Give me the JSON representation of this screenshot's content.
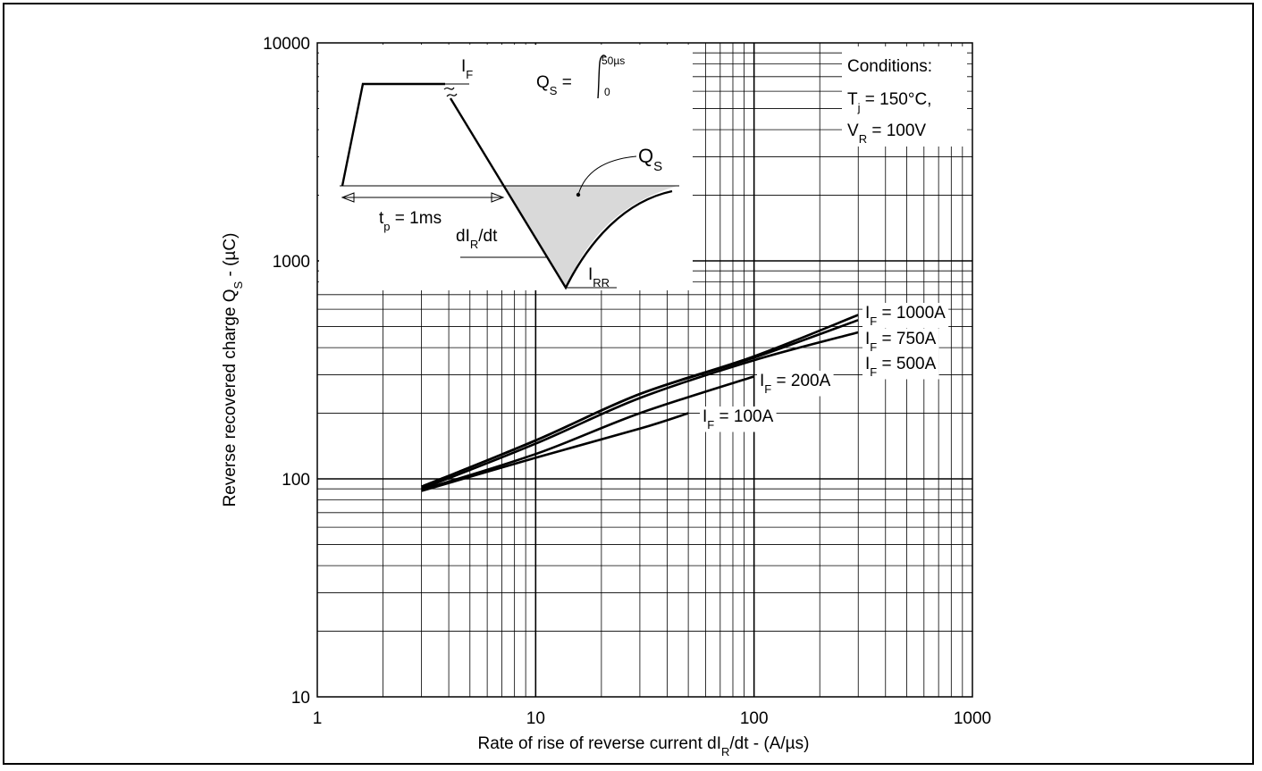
{
  "chart_data": {
    "type": "line",
    "x_scale": "log",
    "y_scale": "log",
    "xlim": [
      1,
      1000
    ],
    "ylim": [
      10,
      10000
    ],
    "grid": true,
    "xlabel": "Rate of rise of reverse current dI_R/dt - (A/µs)",
    "xlabel_parts": {
      "pre": "Rate of rise of reverse current dI",
      "sub": "R",
      "post": "/dt - (A/µs)"
    },
    "ylabel": "Reverse recovered charge Q_S - (µC)",
    "ylabel_parts": {
      "pre": "Reverse recovered charge Q",
      "sub": "S",
      "post": " - (µC)"
    },
    "x_ticks": [
      "1",
      "10",
      "100",
      "1000"
    ],
    "y_ticks": [
      "10",
      "100",
      "1000",
      "10000"
    ],
    "conditions": {
      "title": "Conditions:",
      "line1": {
        "pre": "T",
        "sub": "j",
        "post": " = 150°C,"
      },
      "line2": {
        "pre": "V",
        "sub": "R",
        "post": " = 100V"
      }
    },
    "series": [
      {
        "name": "I_F = 1000A",
        "label": {
          "pre": "I",
          "sub": "F",
          "post": " = 1000A"
        },
        "x": [
          3,
          10,
          30,
          100,
          300
        ],
        "y": [
          92,
          150,
          245,
          365,
          565
        ]
      },
      {
        "name": "I_F = 750A",
        "label": {
          "pre": "I",
          "sub": "F",
          "post": " = 750A"
        },
        "x": [
          3,
          10,
          30,
          100,
          300
        ],
        "y": [
          92,
          150,
          245,
          360,
          535
        ]
      },
      {
        "name": "I_F = 500A",
        "label": {
          "pre": "I",
          "sub": "F",
          "post": " = 500A"
        },
        "x": [
          3,
          10,
          30,
          100,
          300
        ],
        "y": [
          90,
          145,
          235,
          350,
          470
        ]
      },
      {
        "name": "I_F = 200A",
        "label": {
          "pre": "I",
          "sub": "F",
          "post": " = 200A"
        },
        "x": [
          3,
          10,
          30,
          100
        ],
        "y": [
          89,
          130,
          200,
          295
        ]
      },
      {
        "name": "I_F = 100A",
        "label": {
          "pre": "I",
          "sub": "F",
          "post": " = 100A"
        },
        "x": [
          3,
          10,
          30,
          50
        ],
        "y": [
          88,
          125,
          170,
          200
        ]
      }
    ],
    "inset": {
      "i_f": {
        "pre": "I",
        "sub": "F"
      },
      "qs_formula": {
        "pre": "Q",
        "sub": "S",
        "post": " = ",
        "upper": "50µs",
        "lower": "0"
      },
      "qs_label": {
        "pre": "Q",
        "sub": "S"
      },
      "tp": {
        "pre": "t",
        "sub": "p",
        "post": " = 1ms"
      },
      "didt": {
        "pre": "dI",
        "sub": "R",
        "post": "/dt"
      },
      "irr": {
        "pre": "I",
        "sub": "RR"
      }
    }
  }
}
